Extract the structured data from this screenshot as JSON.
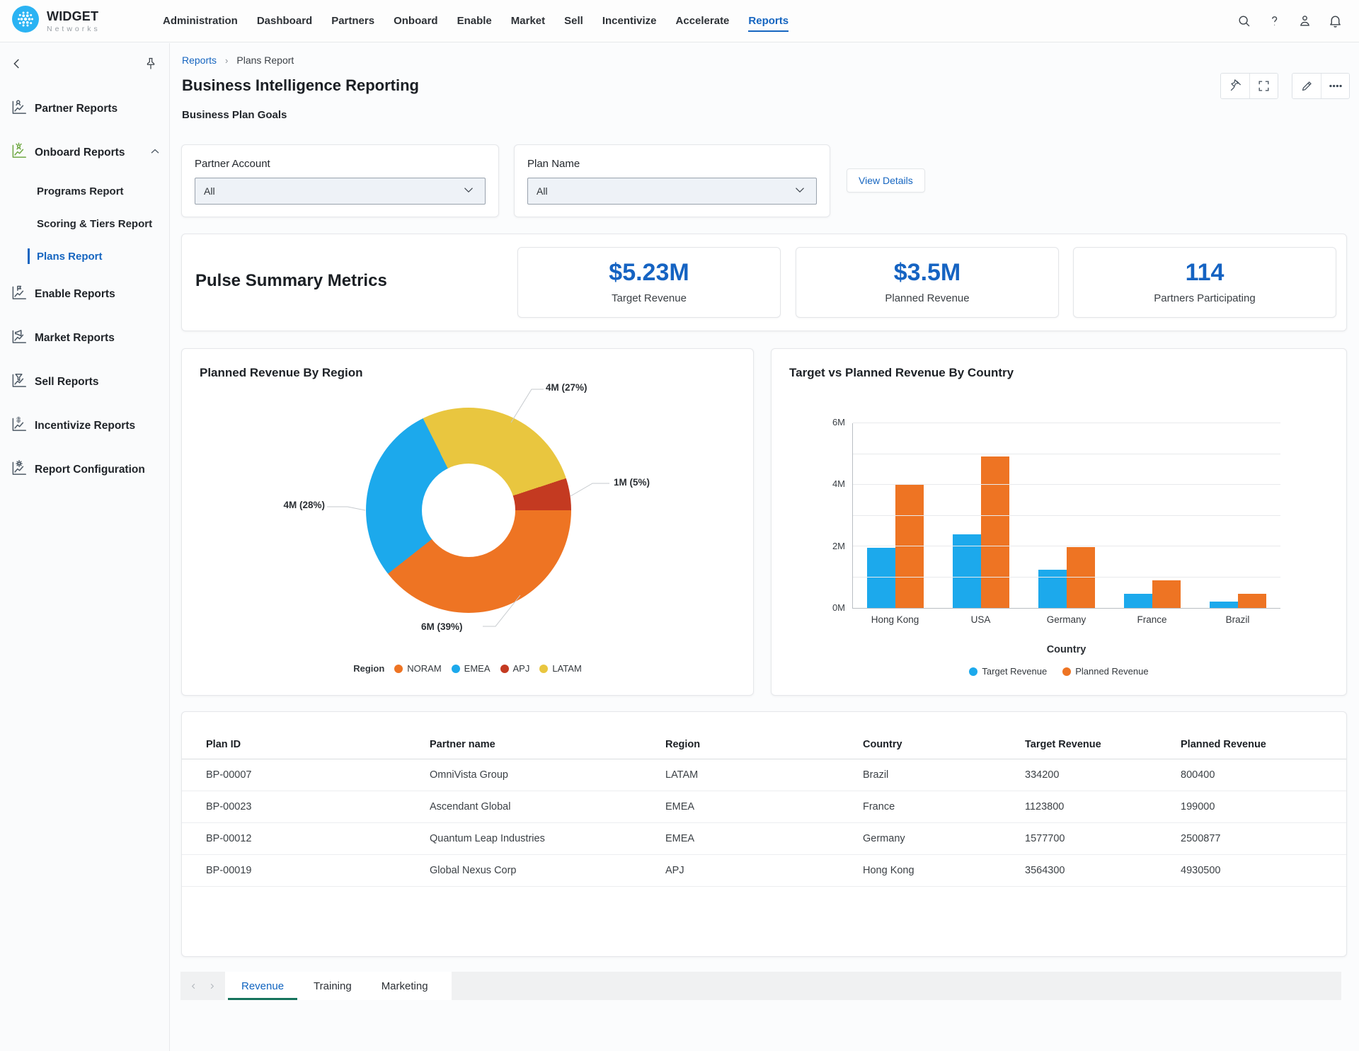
{
  "brand": {
    "name": "WIDGET",
    "subname": "Networks"
  },
  "nav": {
    "items": [
      "Administration",
      "Dashboard",
      "Partners",
      "Onboard",
      "Enable",
      "Market",
      "Sell",
      "Incentivize",
      "Accelerate",
      "Reports"
    ],
    "active": "Reports"
  },
  "sidebar": {
    "items": [
      {
        "label": "Partner Reports",
        "icon": "partner"
      },
      {
        "label": "Onboard Reports",
        "icon": "onboard",
        "expanded": true,
        "children": [
          {
            "label": "Programs Report"
          },
          {
            "label": "Scoring & Tiers Report"
          },
          {
            "label": "Plans Report",
            "active": true
          }
        ]
      },
      {
        "label": "Enable Reports",
        "icon": "enable"
      },
      {
        "label": "Market Reports",
        "icon": "market"
      },
      {
        "label": "Sell Reports",
        "icon": "sell"
      },
      {
        "label": "Incentivize Reports",
        "icon": "incentivize"
      },
      {
        "label": "Report Configuration",
        "icon": "config"
      }
    ]
  },
  "breadcrumb": {
    "parent": "Reports",
    "current": "Plans Report"
  },
  "page": {
    "title": "Business Intelligence Reporting",
    "subtitle": "Business Plan Goals"
  },
  "filters": {
    "partner_account": {
      "label": "Partner Account",
      "value": "All"
    },
    "plan_name": {
      "label": "Plan Name",
      "value": "All"
    },
    "view_details_label": "View Details"
  },
  "metrics": {
    "section_title": "Pulse Summary Metrics",
    "cards": [
      {
        "value": "$5.23M",
        "label": "Target Revenue"
      },
      {
        "value": "$3.5M",
        "label": "Planned Revenue"
      },
      {
        "value": "114",
        "label": "Partners Participating"
      }
    ]
  },
  "chart_data": [
    {
      "type": "pie",
      "donut": true,
      "title": "Planned Revenue By Region",
      "legend_title": "Region",
      "legend_position": "bottom",
      "slices": [
        {
          "label": "NORAM",
          "value_m": 6,
          "pct": 39,
          "value_label": "6M (39%)",
          "color": "#EE7423"
        },
        {
          "label": "EMEA",
          "value_m": 4,
          "pct": 28,
          "value_label": "4M (28%)",
          "color": "#1CA9EC"
        },
        {
          "label": "APJ",
          "value_m": 1,
          "pct": 5,
          "value_label": "1M (5%)",
          "color": "#C43A21"
        },
        {
          "label": "LATAM",
          "value_m": 4,
          "pct": 27,
          "value_label": "4M (27%)",
          "color": "#E9C63F"
        }
      ],
      "draw_order": [
        "NORAM",
        "EMEA",
        "LATAM",
        "APJ"
      ],
      "start_angle_deg": 90
    },
    {
      "type": "bar",
      "title": "Target vs Planned Revenue By Country",
      "categories": [
        "Hong Kong",
        "USA",
        "Germany",
        "France",
        "Brazil"
      ],
      "series": [
        {
          "name": "Target Revenue",
          "color": "#1CA9EC",
          "values": [
            1.95,
            2.4,
            1.25,
            0.45,
            0.2
          ]
        },
        {
          "name": "Planned Revenue",
          "color": "#EE7423",
          "values": [
            4.0,
            4.93,
            1.97,
            0.9,
            0.45
          ]
        }
      ],
      "unit": "M",
      "xlabel": "Country",
      "ylim": [
        0,
        6
      ],
      "yticks": [
        0,
        2,
        4,
        6
      ],
      "gridline_step": 1,
      "grid": true,
      "legend_position": "bottom"
    }
  ],
  "table": {
    "columns": [
      "Plan ID",
      "Partner name",
      "Region",
      "Country",
      "Target Revenue",
      "Planned Revenue"
    ],
    "rows": [
      [
        "BP-00007",
        "OmniVista Group",
        "LATAM",
        "Brazil",
        "334200",
        "800400"
      ],
      [
        "BP-00023",
        "Ascendant Global",
        "EMEA",
        "France",
        "1123800",
        "199000"
      ],
      [
        "BP-00012",
        "Quantum Leap Industries",
        "EMEA",
        "Germany",
        "1577700",
        "2500877"
      ],
      [
        "BP-00019",
        "Global Nexus Corp",
        "APJ",
        "Hong Kong",
        "3564300",
        "4930500"
      ]
    ]
  },
  "tabs": {
    "items": [
      "Revenue",
      "Training",
      "Marketing"
    ],
    "active": "Revenue"
  },
  "colors": {
    "accent_blue": "#1565c0",
    "metric_value_blue": "#1563c2",
    "logo_blue": "#2bb3f3",
    "tab_underline_teal": "#15735c",
    "onboard_icon_green": "#6FA843"
  }
}
